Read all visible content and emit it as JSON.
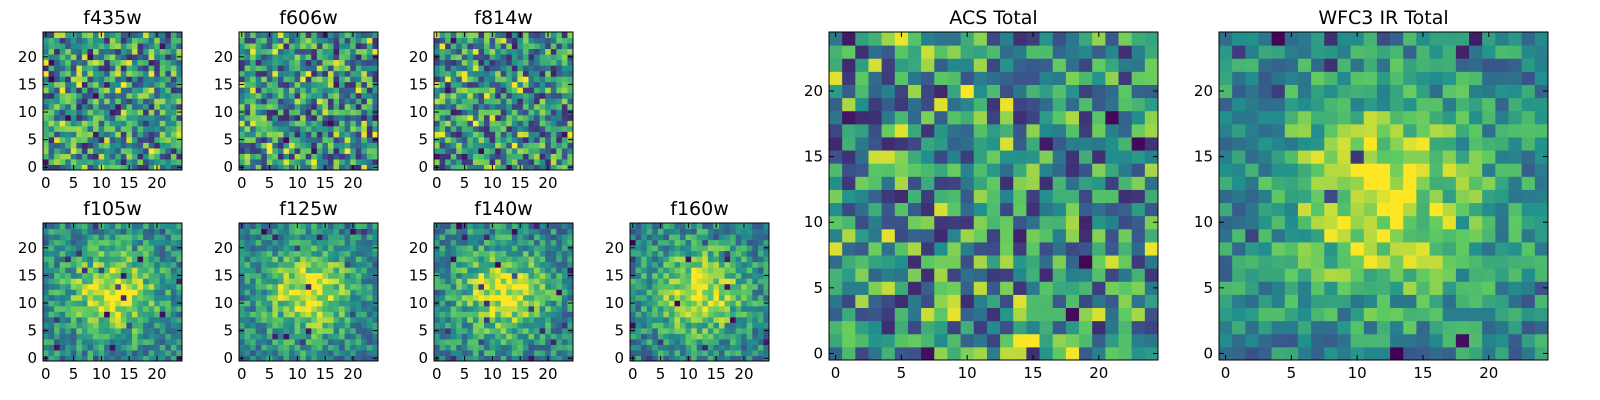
{
  "chart_data": [
    {
      "type": "heatmap",
      "title": "f435w",
      "grid_size": 25,
      "xticks": [
        "0",
        "5",
        "10",
        "15",
        "20"
      ],
      "yticks": [
        "0",
        "5",
        "10",
        "15",
        "20"
      ],
      "xlim": [
        0,
        25
      ],
      "ylim": [
        0,
        25
      ],
      "center_bright": false,
      "seed": 11
    },
    {
      "type": "heatmap",
      "title": "f606w",
      "grid_size": 25,
      "xticks": [
        "0",
        "5",
        "10",
        "15",
        "20"
      ],
      "yticks": [
        "0",
        "5",
        "10",
        "15",
        "20"
      ],
      "xlim": [
        0,
        25
      ],
      "ylim": [
        0,
        25
      ],
      "center_bright": false,
      "seed": 23
    },
    {
      "type": "heatmap",
      "title": "f814w",
      "grid_size": 25,
      "xticks": [
        "0",
        "5",
        "10",
        "15",
        "20"
      ],
      "yticks": [
        "0",
        "5",
        "10",
        "15",
        "20"
      ],
      "xlim": [
        0,
        25
      ],
      "ylim": [
        0,
        25
      ],
      "center_bright": false,
      "seed": 37
    },
    {
      "type": "heatmap",
      "title": "f105w",
      "grid_size": 25,
      "xticks": [
        "0",
        "5",
        "10",
        "15",
        "20"
      ],
      "yticks": [
        "0",
        "5",
        "10",
        "15",
        "20"
      ],
      "xlim": [
        0,
        25
      ],
      "ylim": [
        0,
        25
      ],
      "center_bright": true,
      "seed": 41
    },
    {
      "type": "heatmap",
      "title": "f125w",
      "grid_size": 25,
      "xticks": [
        "0",
        "5",
        "10",
        "15",
        "20"
      ],
      "yticks": [
        "0",
        "5",
        "10",
        "15",
        "20"
      ],
      "xlim": [
        0,
        25
      ],
      "ylim": [
        0,
        25
      ],
      "center_bright": true,
      "seed": 53
    },
    {
      "type": "heatmap",
      "title": "f140w",
      "grid_size": 25,
      "xticks": [
        "0",
        "5",
        "10",
        "15",
        "20"
      ],
      "yticks": [
        "0",
        "5",
        "10",
        "15",
        "20"
      ],
      "xlim": [
        0,
        25
      ],
      "ylim": [
        0,
        25
      ],
      "center_bright": true,
      "seed": 67
    },
    {
      "type": "heatmap",
      "title": "f160w",
      "grid_size": 25,
      "xticks": [
        "0",
        "5",
        "10",
        "15",
        "20"
      ],
      "yticks": [
        "0",
        "5",
        "10",
        "15",
        "20"
      ],
      "xlim": [
        0,
        25
      ],
      "ylim": [
        0,
        25
      ],
      "center_bright": true,
      "seed": 79
    },
    {
      "type": "heatmap",
      "title": "ACS Total",
      "grid_size": 25,
      "xticks": [
        "0",
        "5",
        "10",
        "15",
        "20"
      ],
      "yticks": [
        "0",
        "5",
        "10",
        "15",
        "20"
      ],
      "xlim": [
        0,
        25
      ],
      "ylim": [
        0,
        25
      ],
      "center_bright": false,
      "seed": 83
    },
    {
      "type": "heatmap",
      "title": "WFC3 IR Total",
      "grid_size": 25,
      "xticks": [
        "0",
        "5",
        "10",
        "15",
        "20"
      ],
      "yticks": [
        "0",
        "5",
        "10",
        "15",
        "20"
      ],
      "xlim": [
        0,
        25
      ],
      "ylim": [
        0,
        25
      ],
      "center_bright": true,
      "seed": 97
    }
  ],
  "colormap": [
    "#440154",
    "#3b528b",
    "#21908d",
    "#5dc963",
    "#fde725"
  ]
}
